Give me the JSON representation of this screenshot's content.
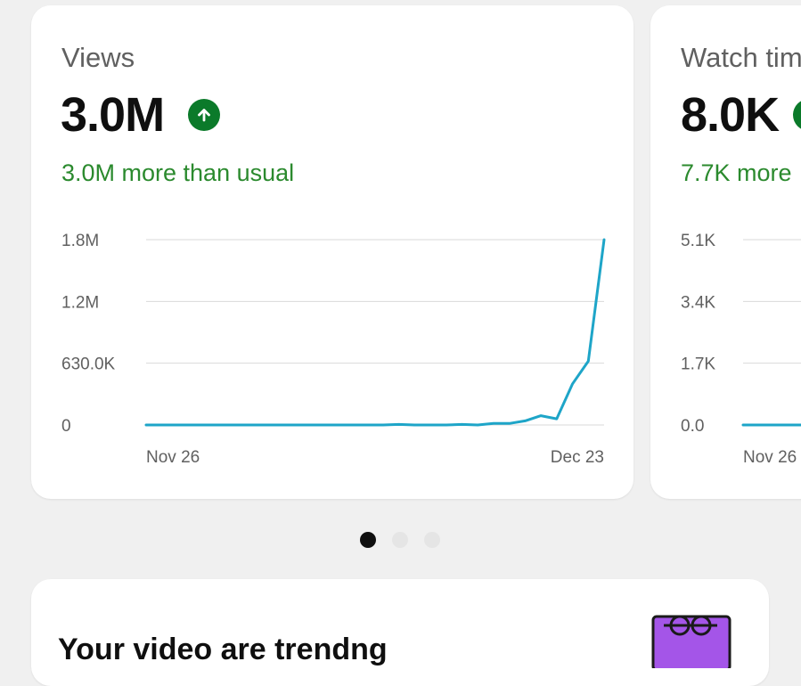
{
  "cards": [
    {
      "title": "Views",
      "value": "3.0M",
      "trend_icon": "arrow-up-icon",
      "comparison": "3.0M more than usual",
      "chart_data": {
        "type": "line",
        "x_labels": [
          "Nov 26",
          "Dec 23"
        ],
        "y_ticks": [
          "0",
          "630.0K",
          "1.2M",
          "1.8M"
        ],
        "ylim": [
          0,
          1800000
        ],
        "grid": true,
        "series": [
          {
            "values": [
              0,
              0,
              0,
              0,
              0,
              0,
              0,
              0,
              0,
              0,
              0,
              0,
              0,
              0,
              0,
              0,
              5000,
              0,
              0,
              0,
              5000,
              0,
              15000,
              15000,
              40000,
              90000,
              60000,
              400000,
              620000,
              1800000
            ]
          }
        ]
      }
    },
    {
      "title": "Watch tim",
      "value": "8.0K",
      "comparison": "7.7K more",
      "chart_data": {
        "type": "line",
        "x_labels": [
          "Nov 26"
        ],
        "y_ticks": [
          "0.0",
          "1.7K",
          "3.4K",
          "5.1K"
        ],
        "ylim": [
          0,
          5100
        ],
        "grid": true,
        "series": [
          {
            "values": [
              0,
              0,
              0
            ]
          }
        ]
      }
    }
  ],
  "pagination": {
    "count": 3,
    "active": 0
  },
  "bottom_card": {
    "title": "Your video are trendng"
  },
  "colors": {
    "accent_line": "#1ea5c8",
    "positive": "#2b8a2e",
    "badge": "#0b7a2a"
  }
}
